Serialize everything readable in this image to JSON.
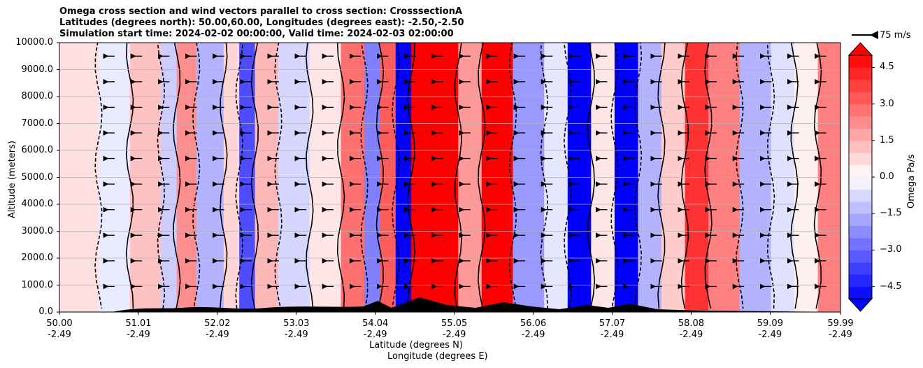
{
  "title_lines": [
    "Omega cross section and wind vectors parallel to cross section: CrosssectionA",
    "Latitudes (degrees north): 50.00,60.00, Longitudes (degrees east): -2.50,-2.50",
    "Simulation start time: 2024-02-02 00:00:00, Valid time: 2024-02-03 02:00:00"
  ],
  "chart_data": {
    "type": "heatmap",
    "title": "Omega cross section and wind vectors parallel to cross section: CrosssectionA",
    "ylabel": "Altitude (meters)",
    "xlabel_lines": [
      "Latitude (degrees N)",
      "Longitude (degrees E)"
    ],
    "ylim": [
      0,
      10000
    ],
    "yticks": [
      "0.0",
      "1000.0",
      "2000.0",
      "3000.0",
      "4000.0",
      "5000.0",
      "6000.0",
      "7000.0",
      "8000.0",
      "9000.0",
      "10000.0"
    ],
    "xlim": [
      50.0,
      59.99
    ],
    "xtick_values": [
      50.0,
      51.01,
      52.02,
      53.03,
      54.04,
      55.05,
      56.06,
      57.07,
      58.08,
      59.09,
      59.99
    ],
    "xticks_lat": [
      "50.00",
      "51.01",
      "52.02",
      "53.03",
      "54.04",
      "55.05",
      "56.06",
      "57.07",
      "58.08",
      "59.09",
      "59.99"
    ],
    "xticks_lon": [
      "-2.49",
      "-2.49",
      "-2.49",
      "-2.49",
      "-2.49",
      "-2.49",
      "-2.49",
      "-2.49",
      "-2.49",
      "-2.49",
      "-2.49"
    ],
    "colorbar": {
      "label": "Omega Pa/s",
      "range": [
        -5.0,
        5.0
      ],
      "step": 0.5,
      "tick_values": [
        -4.5,
        -3.0,
        -1.5,
        0.0,
        1.5,
        3.0,
        4.5
      ],
      "tick_labels": [
        "−4.5",
        "−3.0",
        "−1.5",
        "0.0",
        "1.5",
        "3.0",
        "4.5"
      ],
      "extend": "both"
    },
    "vector_key": {
      "label": "75 m/s",
      "speed": 75
    },
    "omega_bands": [
      {
        "lat_start": 50.0,
        "lat_end": 50.5,
        "omega": 0.6
      },
      {
        "lat_start": 50.5,
        "lat_end": 50.9,
        "omega": -0.4
      },
      {
        "lat_start": 50.9,
        "lat_end": 51.3,
        "omega": 1.2
      },
      {
        "lat_start": 51.3,
        "lat_end": 51.5,
        "omega": -1.0
      },
      {
        "lat_start": 51.5,
        "lat_end": 51.75,
        "omega": 2.2
      },
      {
        "lat_start": 51.75,
        "lat_end": 52.1,
        "omega": -1.5
      },
      {
        "lat_start": 52.1,
        "lat_end": 52.3,
        "omega": 0.8
      },
      {
        "lat_start": 52.3,
        "lat_end": 52.5,
        "omega": -3.5
      },
      {
        "lat_start": 52.5,
        "lat_end": 52.8,
        "omega": 1.4
      },
      {
        "lat_start": 52.8,
        "lat_end": 53.2,
        "omega": -0.8
      },
      {
        "lat_start": 53.2,
        "lat_end": 53.6,
        "omega": 0.5
      },
      {
        "lat_start": 53.6,
        "lat_end": 53.9,
        "omega": 2.8
      },
      {
        "lat_start": 53.9,
        "lat_end": 54.1,
        "omega": -2.5
      },
      {
        "lat_start": 54.1,
        "lat_end": 54.3,
        "omega": 3.2
      },
      {
        "lat_start": 54.3,
        "lat_end": 54.5,
        "omega": -5.0
      },
      {
        "lat_start": 54.5,
        "lat_end": 55.1,
        "omega": 5.0
      },
      {
        "lat_start": 55.1,
        "lat_end": 55.4,
        "omega": 2.0
      },
      {
        "lat_start": 55.4,
        "lat_end": 55.8,
        "omega": 5.0
      },
      {
        "lat_start": 55.8,
        "lat_end": 56.2,
        "omega": -2.0
      },
      {
        "lat_start": 56.2,
        "lat_end": 56.5,
        "omega": -0.5
      },
      {
        "lat_start": 56.5,
        "lat_end": 56.8,
        "omega": -5.0
      },
      {
        "lat_start": 56.8,
        "lat_end": 57.1,
        "omega": 0.5
      },
      {
        "lat_start": 57.1,
        "lat_end": 57.4,
        "omega": -5.0
      },
      {
        "lat_start": 57.4,
        "lat_end": 57.7,
        "omega": -1.5
      },
      {
        "lat_start": 57.7,
        "lat_end": 58.0,
        "omega": 1.0
      },
      {
        "lat_start": 58.0,
        "lat_end": 58.3,
        "omega": 4.0
      },
      {
        "lat_start": 58.3,
        "lat_end": 58.7,
        "omega": 2.5
      },
      {
        "lat_start": 58.7,
        "lat_end": 59.1,
        "omega": -1.5
      },
      {
        "lat_start": 59.1,
        "lat_end": 59.4,
        "omega": -0.6
      },
      {
        "lat_start": 59.4,
        "lat_end": 59.7,
        "omega": 0.3
      },
      {
        "lat_start": 59.7,
        "lat_end": 59.99,
        "omega": 2.5
      }
    ],
    "wind_vector_direction": "toward lower latitude",
    "wind_vector_typical_speed_ms": 75
  }
}
